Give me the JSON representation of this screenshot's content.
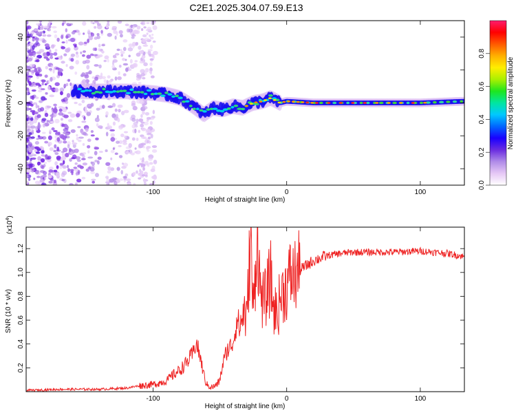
{
  "title": "C2E1.2025.304.07.59.E13",
  "chart_data": [
    {
      "type": "heatmap",
      "xlabel": "Height of straight line (km)",
      "ylabel": "Frequency (Hz)",
      "xlim": [
        -195,
        133
      ],
      "ylim": [
        -50,
        50
      ],
      "xticks": [
        -100,
        0,
        100
      ],
      "yticks": [
        -40,
        -20,
        0,
        20,
        40
      ],
      "colorbar": {
        "label": "Normalized spectral amplitude",
        "range": [
          0,
          1
        ],
        "ticks": [
          "0.0",
          "0.2",
          "0.4",
          "0.6",
          "0.8"
        ],
        "colors": [
          "#ffffff",
          "#e6c8f5",
          "#b08ce8",
          "#6a2de0",
          "#1a00ff",
          "#0066ff",
          "#00c8ff",
          "#00e6a0",
          "#1ee61e",
          "#aaf000",
          "#ffee00",
          "#ffb000",
          "#ff5a00",
          "#ff0000",
          "#ff1c6e"
        ]
      },
      "trace": {
        "x": [
          -160,
          -140,
          -120,
          -100,
          -90,
          -80,
          -70,
          -62,
          -55,
          -48,
          -40,
          -33,
          -25,
          -18,
          -12,
          -5,
          0,
          20,
          60,
          100,
          133
        ],
        "y": [
          7,
          7,
          7,
          6,
          5,
          3,
          -2,
          -7,
          -3,
          -4,
          -2,
          -3,
          0,
          1,
          3,
          0,
          1,
          0,
          0,
          0,
          1
        ]
      }
    },
    {
      "type": "line",
      "xlabel": "Height of straight line (km)",
      "ylabel": "SNR (10 * v/v)",
      "y_multiplier": "(x10",
      "y_multiplier_exp": "4",
      "y_multiplier_close": ")",
      "xlim": [
        -195,
        133
      ],
      "ylim": [
        0,
        1.38
      ],
      "xticks": [
        -100,
        0,
        100
      ],
      "yticks": [
        "0.2",
        "0.4",
        "0.6",
        "0.8",
        "1.0",
        "1.2"
      ],
      "series": [
        {
          "name": "SNR",
          "color": "#ee2222",
          "x": [
            -195,
            -170,
            -140,
            -120,
            -110,
            -100,
            -90,
            -85,
            -80,
            -75,
            -70,
            -68,
            -65,
            -62,
            -60,
            -57,
            -55,
            -52,
            -50,
            -48,
            -45,
            -42,
            -40,
            -37,
            -35,
            -32,
            -30,
            -27,
            -25,
            -22,
            -20,
            -17,
            -15,
            -12,
            -10,
            -7,
            -5,
            -2,
            0,
            3,
            5,
            8,
            10,
            15,
            20,
            25,
            30,
            35,
            40,
            50,
            60,
            80,
            100,
            110,
            120,
            125,
            130,
            133
          ],
          "y": [
            0.01,
            0.02,
            0.02,
            0.03,
            0.05,
            0.06,
            0.09,
            0.14,
            0.18,
            0.24,
            0.32,
            0.42,
            0.3,
            0.14,
            0.06,
            0.04,
            0.04,
            0.06,
            0.1,
            0.22,
            0.34,
            0.38,
            0.42,
            0.62,
            0.52,
            0.7,
            0.58,
            1.3,
            0.64,
            1.38,
            0.86,
            0.74,
            0.82,
            0.96,
            0.7,
            0.66,
            0.78,
            0.86,
            0.88,
            0.98,
            0.96,
            1.0,
            1.02,
            1.06,
            1.1,
            1.12,
            1.14,
            1.15,
            1.16,
            1.17,
            1.17,
            1.17,
            1.18,
            1.17,
            1.16,
            1.15,
            1.14,
            1.13
          ]
        }
      ]
    }
  ]
}
